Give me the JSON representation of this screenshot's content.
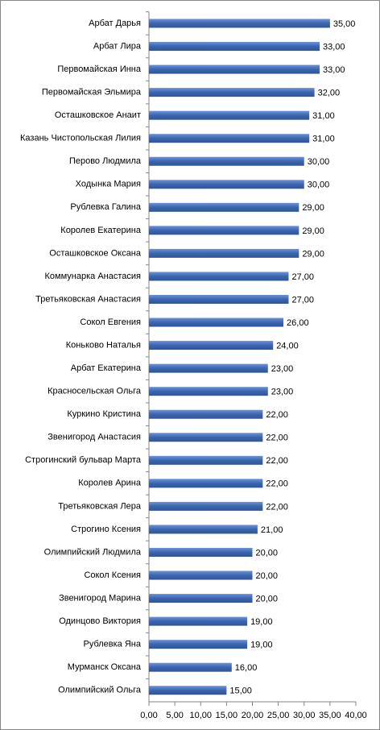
{
  "chart_data": {
    "type": "bar",
    "orientation": "horizontal",
    "color": "#3a65b0",
    "categories": [
      "Арбат Дарья",
      "Арбат Лира",
      "Первомайская Инна",
      "Первомайская Эльмира",
      "Осташковское Анаит",
      "Казань Чистопольская Лилия",
      "Перово Людмила",
      "Ходынка Мария",
      "Рублевка Галина",
      "Королев Екатерина",
      "Осташковское Оксана",
      "Коммунарка Анастасия",
      "Третьяковская Анастасия",
      "Сокол Евгения",
      "Коньково Наталья",
      "Арбат Екатерина",
      "Красносельская Ольга",
      "Куркино Кристина",
      "Звенигород Анастасия",
      "Строгинский бульвар Марта",
      "Королев Арина",
      "Третьяковская Лера",
      "Строгино Ксения",
      "Олимпийский Людмила",
      "Сокол Ксения",
      "Звенигород Марина",
      "Одинцово Виктория",
      "Рублевка Яна",
      "Мурманск Оксана",
      "Олимпийский Ольга"
    ],
    "values": [
      35,
      33,
      33,
      32,
      31,
      31,
      30,
      30,
      29,
      29,
      29,
      27,
      27,
      26,
      24,
      23,
      23,
      22,
      22,
      22,
      22,
      22,
      21,
      20,
      20,
      20,
      19,
      19,
      16,
      15
    ],
    "value_labels": [
      "35,00",
      "33,00",
      "33,00",
      "32,00",
      "31,00",
      "31,00",
      "30,00",
      "30,00",
      "29,00",
      "29,00",
      "29,00",
      "27,00",
      "27,00",
      "26,00",
      "24,00",
      "23,00",
      "23,00",
      "22,00",
      "22,00",
      "22,00",
      "22,00",
      "22,00",
      "21,00",
      "20,00",
      "20,00",
      "20,00",
      "19,00",
      "19,00",
      "16,00",
      "15,00"
    ],
    "xlim": [
      0,
      40
    ],
    "xticks": [
      {
        "value": 0,
        "label": "0,00"
      },
      {
        "value": 5,
        "label": "5,00"
      },
      {
        "value": 10,
        "label": "10,00"
      },
      {
        "value": 15,
        "label": "15,00"
      },
      {
        "value": 20,
        "label": "20,00"
      },
      {
        "value": 25,
        "label": "25,00"
      },
      {
        "value": 30,
        "label": "30,00"
      },
      {
        "value": 35,
        "label": "35,00"
      },
      {
        "value": 40,
        "label": "40,00"
      }
    ],
    "grid": false
  }
}
